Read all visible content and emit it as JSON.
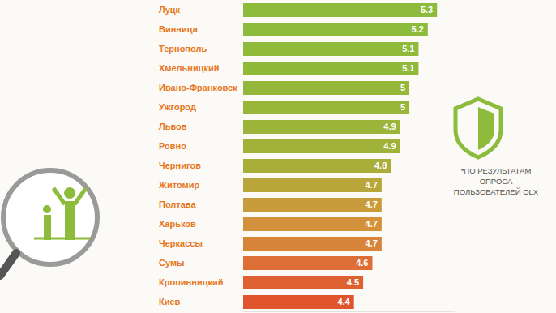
{
  "chart_data": {
    "type": "bar",
    "orientation": "horizontal",
    "categories": [
      "Луцк",
      "Винница",
      "Тернополь",
      "Хмельницкий",
      "Ивано-Франковск",
      "Ужгород",
      "Львов",
      "Ровно",
      "Чернигов",
      "Житомир",
      "Полтава",
      "Харьков",
      "Черкассы",
      "Сумы",
      "Кропивницкий",
      "Киев"
    ],
    "values": [
      5.3,
      5.2,
      5.1,
      5.1,
      5,
      5,
      4.9,
      4.9,
      4.8,
      4.7,
      4.7,
      4.7,
      4.7,
      4.6,
      4.5,
      4.4
    ],
    "colors": [
      "#8dbb3b",
      "#8dbb3b",
      "#8fba3a",
      "#90b93a",
      "#95b83a",
      "#98b639",
      "#9bb439",
      "#a0b239",
      "#a8ae39",
      "#b8a63a",
      "#c89c3a",
      "#d2913a",
      "#d8833a",
      "#dc6e36",
      "#de6132",
      "#e0552e"
    ],
    "xlim": [
      3.2,
      5.5
    ],
    "data_labels": true,
    "tick_labels": "y",
    "grid": false,
    "annotation": [
      "*ПО РЕЗУЛЬТАТАМ",
      "ОПРОСА",
      "ПОЛЬЗОВАТЕЛЕЙ OLX"
    ]
  }
}
